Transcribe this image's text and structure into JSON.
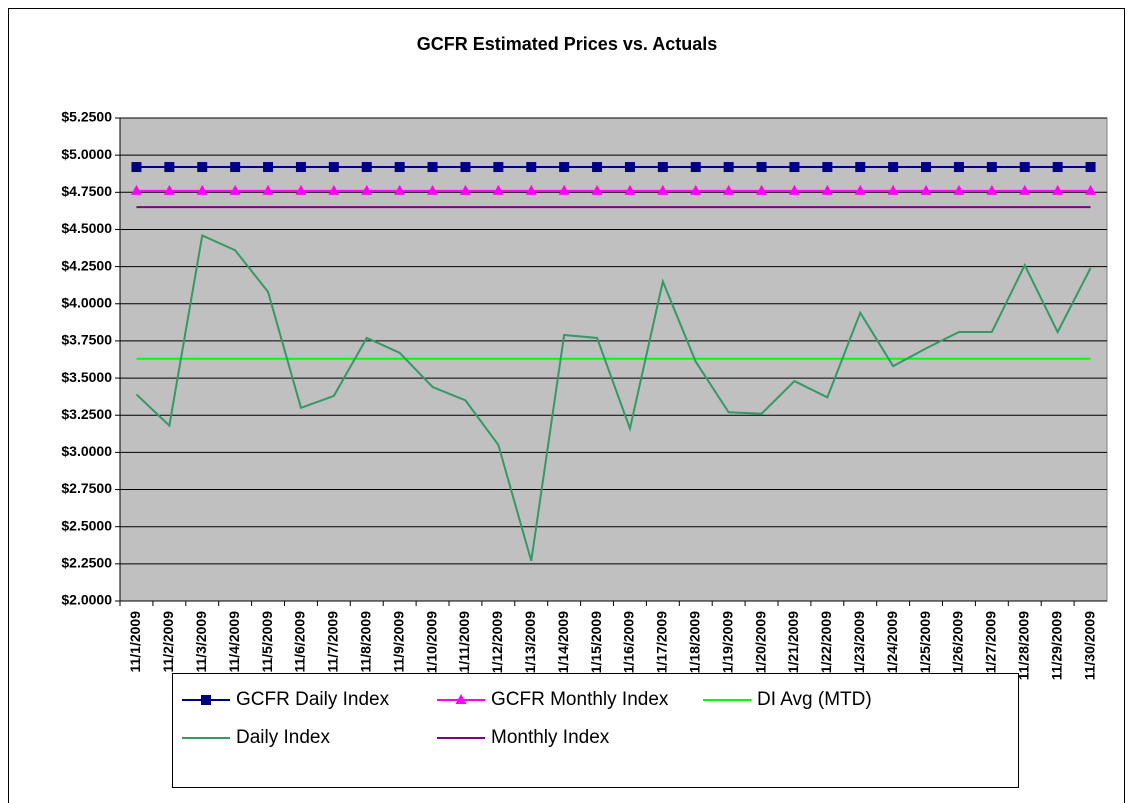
{
  "chart_data": {
    "type": "line",
    "title": "GCFR Estimated Prices vs. Actuals",
    "categories": [
      "11/1/2009",
      "11/2/2009",
      "11/3/2009",
      "11/4/2009",
      "11/5/2009",
      "11/6/2009",
      "11/7/2009",
      "11/8/2009",
      "11/9/2009",
      "11/10/2009",
      "11/11/2009",
      "11/12/2009",
      "11/13/2009",
      "11/14/2009",
      "11/15/2009",
      "11/16/2009",
      "11/17/2009",
      "11/18/2009",
      "11/19/2009",
      "11/20/2009",
      "11/21/2009",
      "11/22/2009",
      "11/23/2009",
      "11/24/2009",
      "11/25/2009",
      "11/26/2009",
      "11/27/2009",
      "11/28/2009",
      "11/29/2009",
      "11/30/2009"
    ],
    "series": [
      {
        "name": "GCFR Daily Index",
        "color": "#000080",
        "line_color": "#000080",
        "marker": "square",
        "values": [
          4.92,
          4.92,
          4.92,
          4.92,
          4.92,
          4.92,
          4.92,
          4.92,
          4.92,
          4.92,
          4.92,
          4.92,
          4.92,
          4.92,
          4.92,
          4.92,
          4.92,
          4.92,
          4.92,
          4.92,
          4.92,
          4.92,
          4.92,
          4.92,
          4.92,
          4.92,
          4.92,
          4.92,
          4.92,
          4.92
        ]
      },
      {
        "name": "GCFR Monthly Index",
        "color": "#ff00ff",
        "line_color": "#ff00ff",
        "marker": "triangle",
        "values": [
          4.76,
          4.76,
          4.76,
          4.76,
          4.76,
          4.76,
          4.76,
          4.76,
          4.76,
          4.76,
          4.76,
          4.76,
          4.76,
          4.76,
          4.76,
          4.76,
          4.76,
          4.76,
          4.76,
          4.76,
          4.76,
          4.76,
          4.76,
          4.76,
          4.76,
          4.76,
          4.76,
          4.76,
          4.76,
          4.76
        ]
      },
      {
        "name": "DI Avg (MTD)",
        "color": "#00ff00",
        "line_color": "#00ff00",
        "marker": "none",
        "values": [
          3.63,
          3.63,
          3.63,
          3.63,
          3.63,
          3.63,
          3.63,
          3.63,
          3.63,
          3.63,
          3.63,
          3.63,
          3.63,
          3.63,
          3.63,
          3.63,
          3.63,
          3.63,
          3.63,
          3.63,
          3.63,
          3.63,
          3.63,
          3.63,
          3.63,
          3.63,
          3.63,
          3.63,
          3.63,
          3.63
        ]
      },
      {
        "name": "Daily Index",
        "color": "#339966",
        "line_color": "#339966",
        "marker": "none",
        "values": [
          3.39,
          3.18,
          4.46,
          4.36,
          4.08,
          3.3,
          3.38,
          3.77,
          3.67,
          3.44,
          3.35,
          3.05,
          2.27,
          3.79,
          3.77,
          3.16,
          4.15,
          3.61,
          3.27,
          3.26,
          3.48,
          3.37,
          3.94,
          3.58,
          3.7,
          3.81,
          3.81,
          4.26,
          3.81,
          4.24
        ]
      },
      {
        "name": "Monthly Index",
        "color": "#800080",
        "line_color": "#800080",
        "marker": "none",
        "values": [
          4.65,
          4.65,
          4.65,
          4.65,
          4.65,
          4.65,
          4.65,
          4.65,
          4.65,
          4.65,
          4.65,
          4.65,
          4.65,
          4.65,
          4.65,
          4.65,
          4.65,
          4.65,
          4.65,
          4.65,
          4.65,
          4.65,
          4.65,
          4.65,
          4.65,
          4.65,
          4.65,
          4.65,
          4.65,
          4.65
        ]
      }
    ],
    "ylim": [
      2,
      5.25
    ],
    "yticks": [
      {
        "value": 2,
        "label": "$2.0000"
      },
      {
        "value": 2.25,
        "label": "$2.2500"
      },
      {
        "value": 2.5,
        "label": "$2.5000"
      },
      {
        "value": 2.75,
        "label": "$2.7500"
      },
      {
        "value": 3,
        "label": "$3.0000"
      },
      {
        "value": 3.25,
        "label": "$3.2500"
      },
      {
        "value": 3.5,
        "label": "$3.5000"
      },
      {
        "value": 3.75,
        "label": "$3.7500"
      },
      {
        "value": 4,
        "label": "$4.0000"
      },
      {
        "value": 4.25,
        "label": "$4.2500"
      },
      {
        "value": 4.5,
        "label": "$4.5000"
      },
      {
        "value": 4.75,
        "label": "$4.7500"
      },
      {
        "value": 5,
        "label": "$5.0000"
      },
      {
        "value": 5.25,
        "label": "$5.2500"
      }
    ],
    "grid": true,
    "plot_background": "#c0c0c0",
    "legend": "bottom"
  }
}
